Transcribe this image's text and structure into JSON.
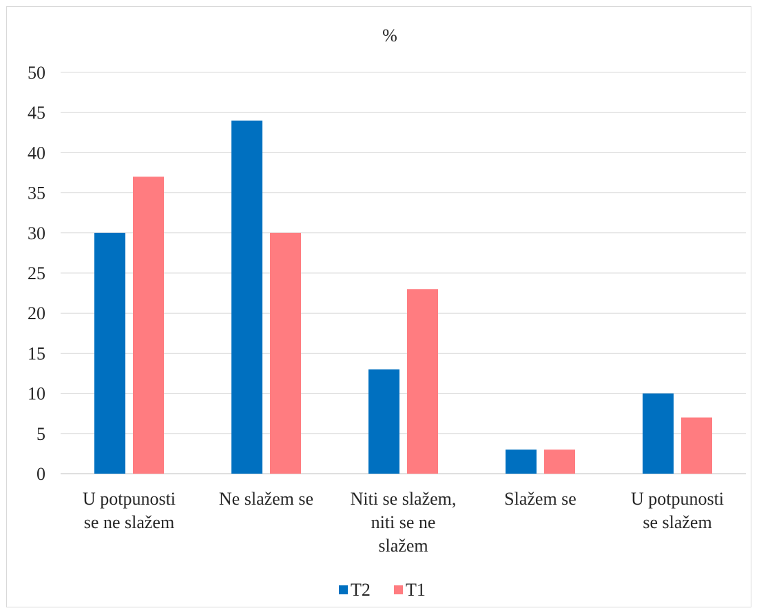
{
  "chart_data": {
    "type": "bar",
    "title": "%",
    "xlabel": "",
    "ylabel": "",
    "ylim": [
      0,
      50
    ],
    "yticks": [
      0,
      5,
      10,
      15,
      20,
      25,
      30,
      35,
      40,
      45,
      50
    ],
    "grid": true,
    "legend_position": "bottom",
    "categories": [
      [
        "U potpunosti",
        "se ne slažem"
      ],
      [
        "Ne slažem se"
      ],
      [
        "Niti se slažem,",
        "niti se ne",
        "slažem"
      ],
      [
        "Slažem se"
      ],
      [
        "U potpunosti",
        "se slažem"
      ]
    ],
    "series": [
      {
        "name": "T2",
        "color": "#0070C0",
        "values": [
          30,
          44,
          13,
          3,
          10
        ]
      },
      {
        "name": "T1",
        "color": "#FF7C80",
        "values": [
          37,
          30,
          23,
          3,
          7
        ]
      }
    ]
  }
}
